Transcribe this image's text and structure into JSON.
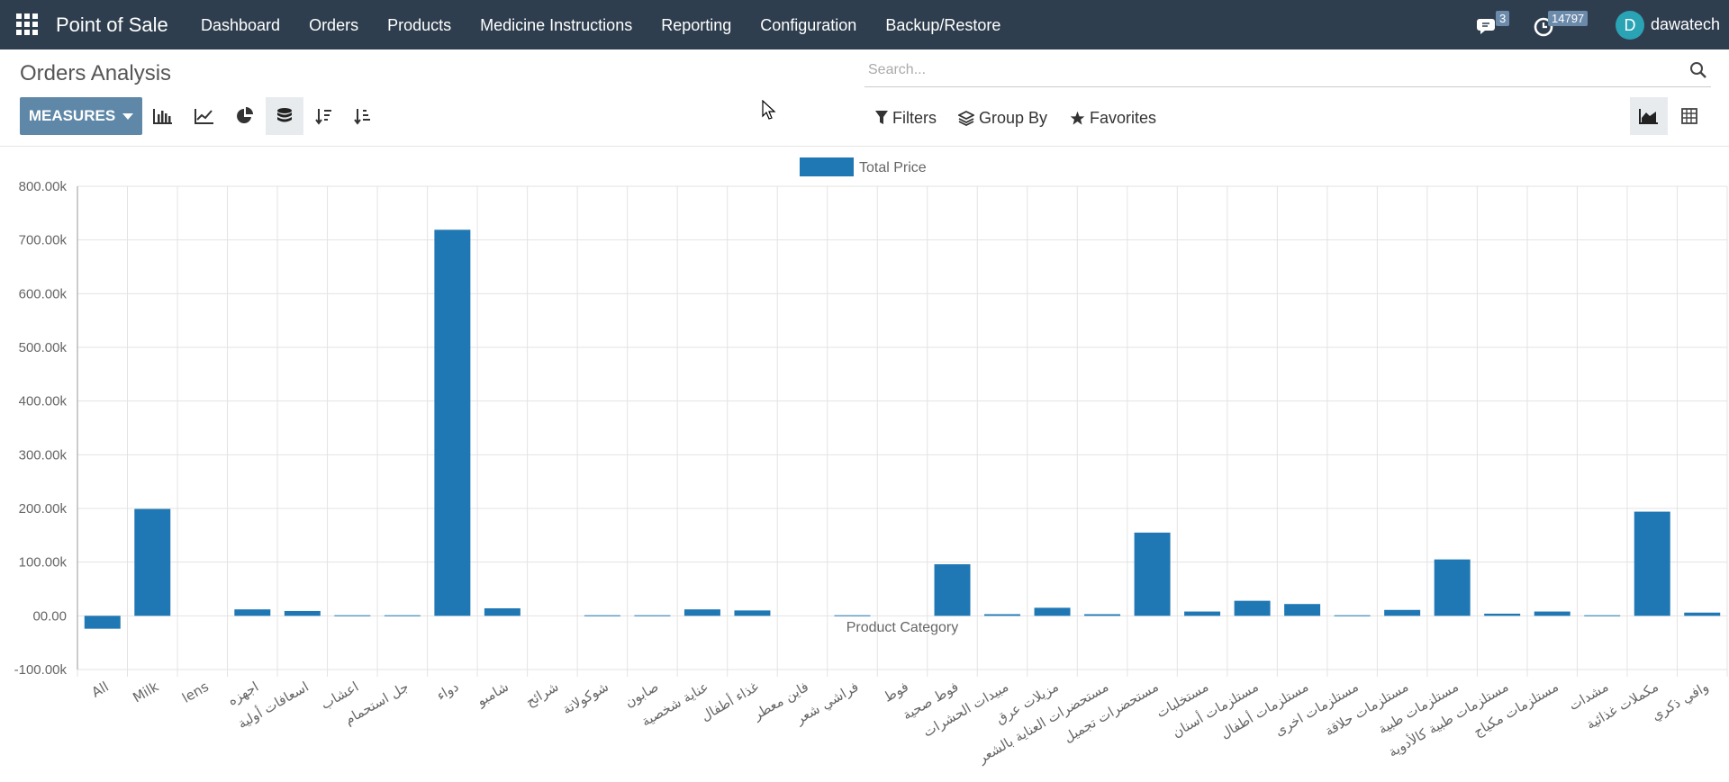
{
  "navbar": {
    "brand": "Point of Sale",
    "menu": [
      "Dashboard",
      "Orders",
      "Products",
      "Medicine Instructions",
      "Reporting",
      "Configuration",
      "Backup/Restore"
    ],
    "messages_count": "3",
    "activity_count": "14797",
    "user_initial": "D",
    "username": "dawatech",
    "colors": {
      "bar": "#2f3e4e",
      "avatar": "#2aa3b5",
      "badge": "#6c8bab"
    }
  },
  "page": {
    "title": "Orders Analysis"
  },
  "search": {
    "placeholder": "Search..."
  },
  "toolbar": {
    "measures_label": "MEASURES",
    "filters_label": "Filters",
    "group_by_label": "Group By",
    "favorites_label": "Favorites",
    "measures_color": "#5e87a8"
  },
  "chart_data": {
    "type": "bar",
    "xlabel": "Product Category",
    "ylabel": "",
    "ylim": [
      -100000,
      800000
    ],
    "yticks": [
      -100000,
      0,
      100000,
      200000,
      300000,
      400000,
      500000,
      600000,
      700000,
      800000
    ],
    "ytick_labels": [
      "-100.00k",
      "00.00",
      "100.00k",
      "200.00k",
      "300.00k",
      "400.00k",
      "500.00k",
      "600.00k",
      "700.00k",
      "800.00k"
    ],
    "grid": true,
    "legend_position": "top-center",
    "bar_color": "#1f77b4",
    "categories": [
      "All",
      "Milk",
      "lens",
      "اجهزه",
      "اسعافات أولية",
      "اعشاب",
      "جل استحمام",
      "دواء",
      "شامبو",
      "شرائح",
      "شوكولاتة",
      "صابون",
      "عناية شخصية",
      "غذاء أطفال",
      "فاين معطر",
      "فراشي شعر",
      "فوط",
      "فوط صحية",
      "مبيدات الحشرات",
      "مزيلات عرق",
      "مستحضرات العناية بالشعر",
      "مستحضرات تجميل",
      "مستخلبات",
      "مستلزمات أسنان",
      "مستلزمات أطفال",
      "مستلزمات اخرى",
      "مستلزمات حلاقة",
      "مستلزمات طبية",
      "مستلزمات طبية كالأدوية",
      "مستلزمات مكياج",
      "مشدات",
      "مكملات غذائية",
      "وافي ذكري"
    ],
    "series": [
      {
        "name": "Total Price",
        "values": [
          -24000,
          199000,
          0,
          12000,
          9000,
          1000,
          1000,
          719000,
          14000,
          0,
          1000,
          1000,
          12000,
          10000,
          0,
          1000,
          0,
          96000,
          3000,
          15000,
          3000,
          155000,
          8000,
          28000,
          22000,
          1000,
          11000,
          105000,
          4000,
          8000,
          1000,
          194000,
          6000
        ]
      }
    ]
  }
}
